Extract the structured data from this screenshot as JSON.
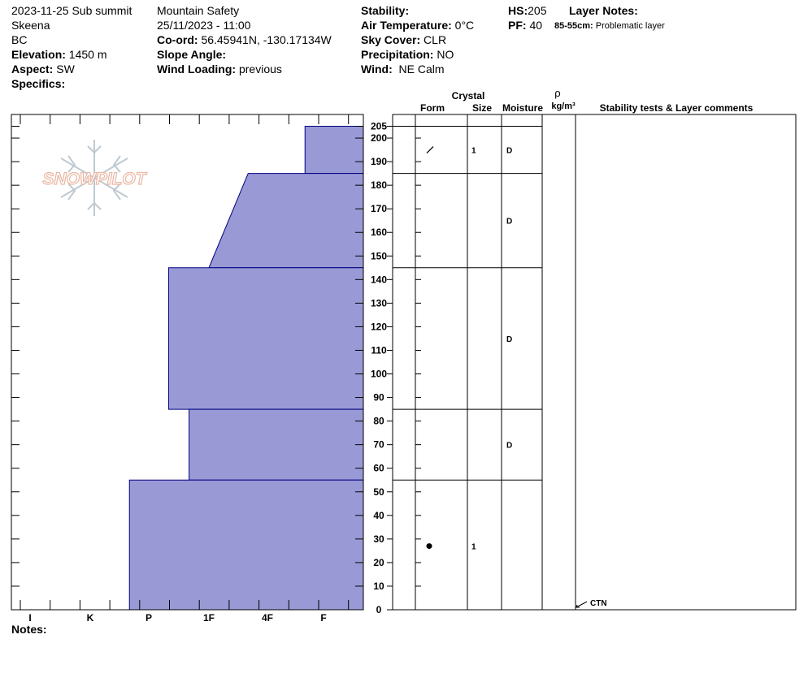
{
  "header": {
    "col1": {
      "title": "2023-11-25 Sub summit",
      "range": "Skeena",
      "region": "BC",
      "elevation_label": "Elevation:",
      "elevation_value": "1450 m",
      "aspect_label": "Aspect:",
      "aspect_value": "SW",
      "specifics_label": "Specifics:"
    },
    "col2": {
      "organization": "Mountain Safety",
      "datetime": "25/11/2023 - 11:00",
      "coord_label": "Co-ord:",
      "coord_value": "56.45941N, -130.17134W",
      "slope_label": "Slope Angle:",
      "wind_loading_label": "Wind Loading:",
      "wind_loading_value": "previous"
    },
    "col3": {
      "stability_label": "Stability:",
      "air_temp_label": "Air Temperature:",
      "air_temp_value": "0°C",
      "sky_label": "Sky Cover:",
      "sky_value": "CLR",
      "precip_label": "Precipitation:",
      "precip_value": "NO",
      "wind_label": "Wind:",
      "wind_value": "NE Calm"
    },
    "col4": {
      "hs_label": "HS:",
      "hs_value": "205",
      "pf_label": "PF:",
      "pf_value": "40",
      "layer_notes_label": "Layer Notes:",
      "layer_note_range": "85-55cm:",
      "layer_note_text": "Problematic layer"
    }
  },
  "watermark": "SNOWPILOT",
  "notes_label": "Notes:",
  "table_headers": {
    "crystal": "Crystal",
    "form": "Form",
    "size": "Size",
    "moisture": "Moisture",
    "rho": "ρ",
    "density_unit": "kg/m³",
    "stability": "Stability tests & Layer comments"
  },
  "test_result": "CTN",
  "colors": {
    "fill": "#9999d6",
    "outline": "#000080"
  },
  "chart_data": {
    "type": "snow-profile",
    "hs": 205,
    "depth_range": [
      0,
      205
    ],
    "y_ticks": [
      0,
      10,
      20,
      30,
      40,
      50,
      60,
      70,
      80,
      90,
      100,
      110,
      120,
      130,
      140,
      150,
      160,
      170,
      180,
      190,
      200,
      205
    ],
    "hardness_scale": [
      "I",
      "K",
      "P",
      "1F",
      "4F",
      "F"
    ],
    "layers": [
      {
        "top": 205,
        "bottom": 185,
        "hardness_top": "4F+",
        "hardness_bottom": "4F+",
        "form": "precipitation-particles",
        "size": "1",
        "moisture": "D"
      },
      {
        "top": 185,
        "bottom": 145,
        "hardness_top": "1F+",
        "hardness_bottom": "1F",
        "form": "",
        "size": "",
        "moisture": "D"
      },
      {
        "top": 145,
        "bottom": 85,
        "hardness_top": "P+",
        "hardness_bottom": "P+",
        "form": "",
        "size": "",
        "moisture": "D"
      },
      {
        "top": 85,
        "bottom": 55,
        "hardness_top": "1F-",
        "hardness_bottom": "1F-",
        "form": "",
        "size": "",
        "moisture": "D"
      },
      {
        "top": 55,
        "bottom": 0,
        "hardness_top": "P-",
        "hardness_bottom": "P-",
        "form": "rounded-grains",
        "size": "1",
        "moisture": ""
      }
    ],
    "hardness_values": {
      "P-": 2.67,
      "P+": 3.33,
      "1F-": 3.67,
      "1F": 4.0,
      "1F+": 4.67,
      "4F+": 5.67
    },
    "stability_tests": [
      {
        "result": "CTN",
        "depth": 0
      }
    ]
  }
}
